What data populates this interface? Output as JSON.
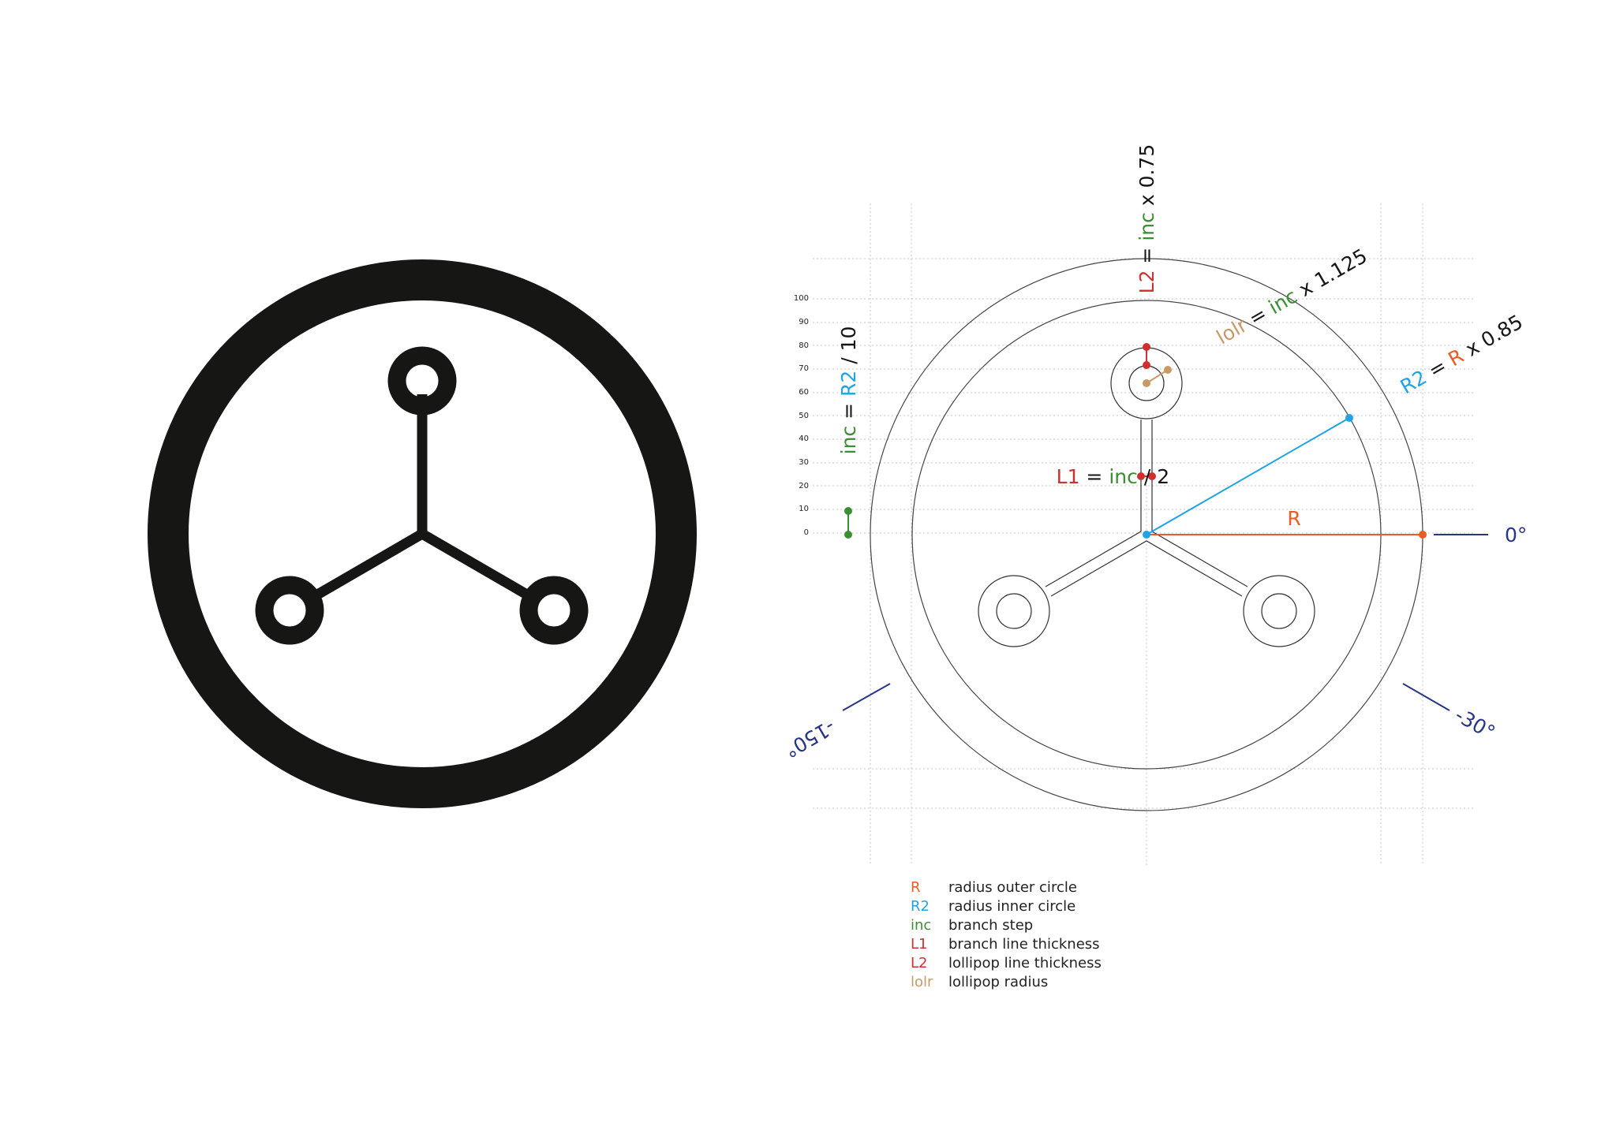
{
  "colors": {
    "ink": "#161614",
    "R": "#ee5a24",
    "R2": "#1ea3e3",
    "inc": "#3a8f33",
    "L1": "#d02f2f",
    "L2": "#d02f2f",
    "lolr": "#c89a66",
    "angle": "#26348b",
    "grid": "#bdbdbd",
    "outline": "#333333"
  },
  "ruler": {
    "ticks": [
      "100",
      "90",
      "80",
      "70",
      "60",
      "50",
      "40",
      "30",
      "20",
      "10",
      "0"
    ]
  },
  "equations": {
    "l2": {
      "var": "L2",
      "op": " = ",
      "ref": "inc",
      "rest": " x 0.75"
    },
    "lolr": {
      "var": "lolr",
      "op": " = ",
      "ref": "inc",
      "rest": " x 1.125"
    },
    "r2": {
      "var": "R2",
      "op": " = ",
      "ref": "R",
      "rest": " x 0.85"
    },
    "inc": {
      "var": "inc",
      "op": " = ",
      "ref": "R2",
      "rest": " / 10"
    },
    "l1": {
      "var": "L1",
      "op": " = ",
      "ref": "inc",
      "rest": " / 2"
    }
  },
  "labels": {
    "radius": "R",
    "angle_0": "0°",
    "angle_neg30": "-30°",
    "angle_neg150": "-150°"
  },
  "legend": [
    {
      "key": "R",
      "desc": "radius outer circle",
      "color_key": "R"
    },
    {
      "key": "R2",
      "desc": "radius inner circle",
      "color_key": "R2"
    },
    {
      "key": "inc",
      "desc": "branch step",
      "color_key": "inc"
    },
    {
      "key": "L1",
      "desc": "branch line thickness",
      "color_key": "L1"
    },
    {
      "key": "L2",
      "desc": "lollipop line thickness",
      "color_key": "L2"
    },
    {
      "key": "lolr",
      "desc": "lollipop radius",
      "color_key": "lolr"
    }
  ]
}
